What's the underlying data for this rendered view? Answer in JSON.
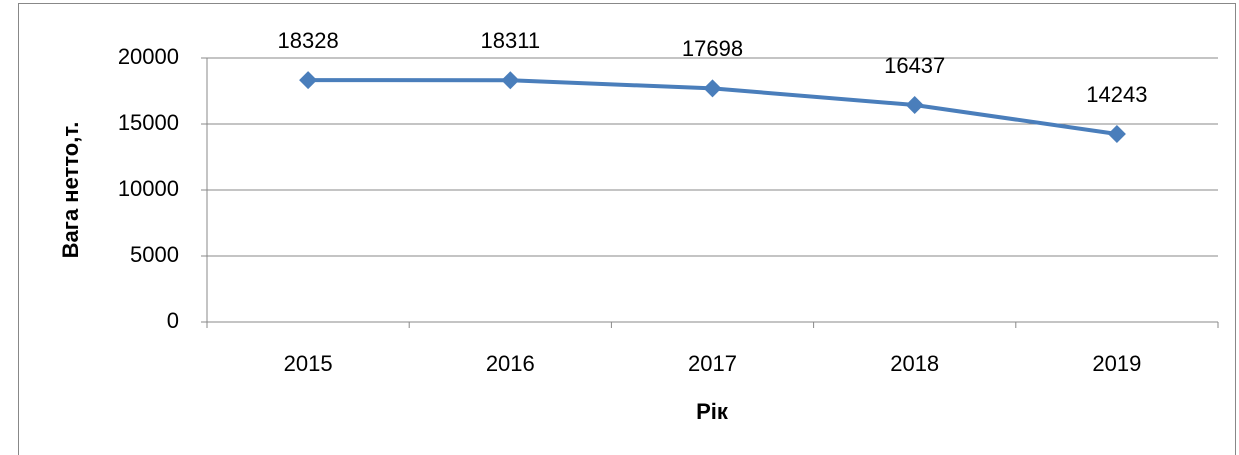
{
  "chart_data": {
    "type": "line",
    "categories": [
      "2015",
      "2016",
      "2017",
      "2018",
      "2019"
    ],
    "series": [
      {
        "name": "Вага нетто",
        "color": "#4a7ebb",
        "values": [
          18328,
          18311,
          17698,
          16437,
          14243
        ]
      }
    ],
    "ylim": [
      0,
      20000
    ],
    "yticks": [
      0,
      5000,
      10000,
      15000,
      20000
    ],
    "grid": true,
    "xlabel": "Рік",
    "ylabel": "Вага нетто,т."
  }
}
